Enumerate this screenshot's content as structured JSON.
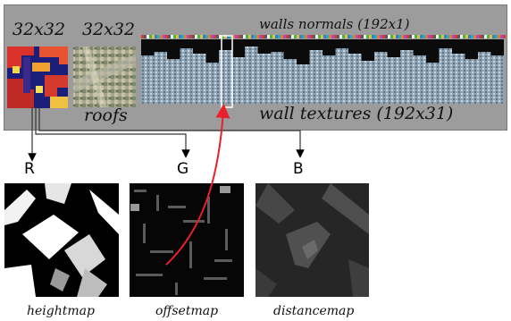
{
  "top": {
    "height_tex_size": "32x32",
    "roof_tex_size": "32x32",
    "roofs_label": "roofs",
    "walls_normals_label": "walls normals (192x1)",
    "wall_textures_label": "wall  textures (192x31)"
  },
  "channels": {
    "r": "R",
    "g": "G",
    "b": "B"
  },
  "maps": {
    "heightmap_label": "heightmap",
    "offsetmap_label": "offsetmap",
    "distancemap_label": "distancemap"
  },
  "colors": {
    "panel": "#9c9c9c",
    "arrow_red": "#e8202a",
    "wall_blue": "#9fb3c4"
  }
}
